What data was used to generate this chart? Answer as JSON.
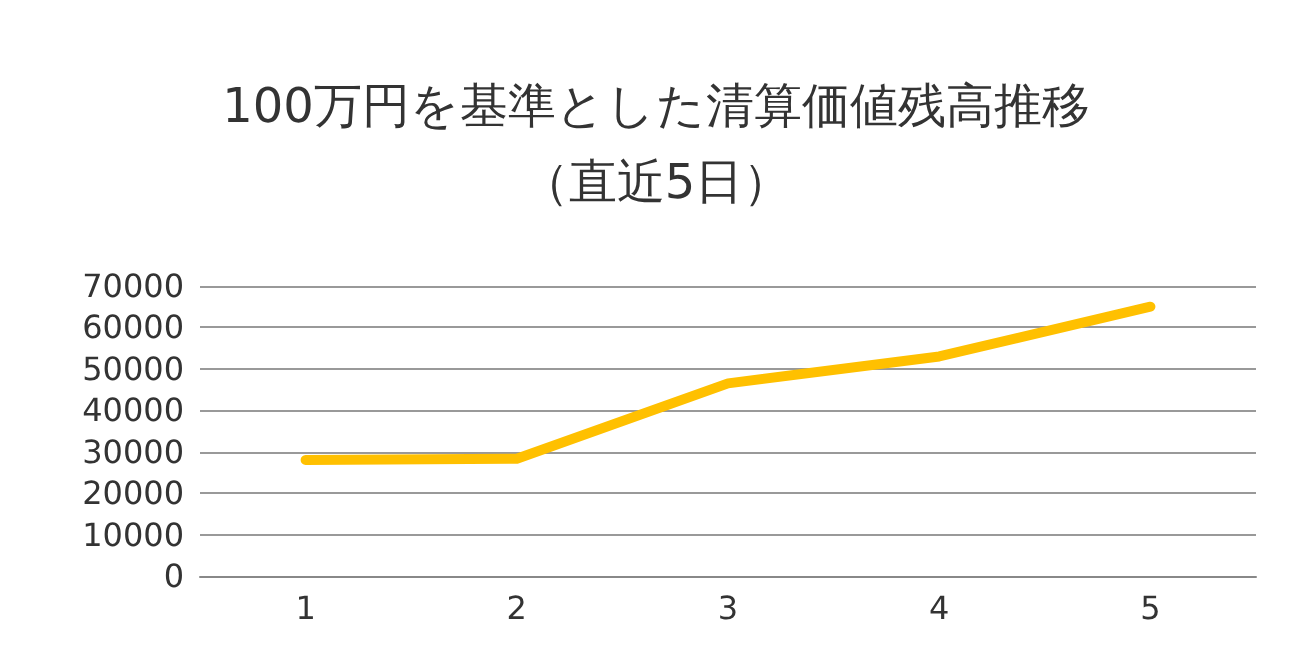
{
  "chart_data": {
    "type": "line",
    "title": "100万円を基準とした清算価値残高推移",
    "subtitle": "（直近5日）",
    "categories": [
      "1",
      "2",
      "3",
      "4",
      "5"
    ],
    "series": [
      {
        "color": "#ffc000",
        "values": [
          28000,
          28300,
          46500,
          53000,
          65000
        ]
      }
    ],
    "ylim": [
      0,
      70000
    ],
    "yticks": [
      0,
      10000,
      20000,
      30000,
      40000,
      50000,
      60000,
      70000
    ],
    "grid": "y",
    "marker": "none",
    "line_style": "solid"
  }
}
